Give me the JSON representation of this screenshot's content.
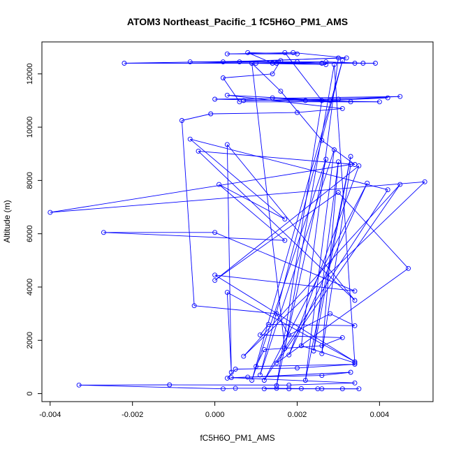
{
  "chart_data": {
    "type": "line",
    "title": "ATOM3 Northeast_Pacific_1 fC5H6O_PM1_AMS",
    "xlabel": "fC5H6O_PM1_AMS",
    "ylabel": "Altitude (m)",
    "xlim": [
      -0.0042,
      0.0053
    ],
    "ylim": [
      -300,
      13200
    ],
    "xticks": [
      -0.004,
      -0.002,
      0.0,
      0.002,
      0.004
    ],
    "xtick_labels": [
      "-0.004",
      "-0.002",
      "0.000",
      "0.002",
      "0.004"
    ],
    "yticks": [
      0,
      2000,
      4000,
      6000,
      8000,
      10000,
      12000
    ],
    "ytick_labels": [
      "0",
      "2000",
      "4000",
      "6000",
      "8000",
      "10000",
      "12000"
    ],
    "grid": false,
    "line_color": "#0000ff",
    "marker": "open-circle",
    "series": [
      {
        "points": [
          [
            0.0012,
            180
          ],
          [
            0.0018,
            180
          ],
          [
            0.0025,
            180
          ],
          [
            0.0031,
            180
          ],
          [
            0.0035,
            180
          ],
          [
            0.0026,
            180
          ],
          [
            0.0021,
            190
          ],
          [
            0.0015,
            200
          ],
          [
            0.0005,
            200
          ],
          [
            0.0002,
            180
          ],
          [
            -0.0033,
            320
          ],
          [
            -0.0011,
            330
          ],
          [
            0.0018,
            320
          ],
          [
            0.0034,
            400
          ],
          [
            0.0004,
            600
          ],
          [
            0.0008,
            620
          ],
          [
            0.0026,
            680
          ],
          [
            0.0033,
            800
          ],
          [
            0.0003,
            580
          ],
          [
            0.0005,
            920
          ],
          [
            0.002,
            960
          ],
          [
            0.0034,
            1100
          ],
          [
            0.001,
            1020
          ],
          [
            0.0012,
            1650
          ],
          [
            0.0026,
            1800
          ],
          [
            0.0031,
            2100
          ],
          [
            0.0011,
            2200
          ],
          [
            0.0013,
            2600
          ],
          [
            0.0034,
            2550
          ],
          [
            0.0028,
            3000
          ],
          [
            0.0018,
            2200
          ],
          [
            0.0015,
            3000
          ],
          [
            -0.0005,
            3300
          ],
          [
            -0.0008,
            10250
          ],
          [
            -0.0001,
            10500
          ],
          [
            0.002,
            10550
          ],
          [
            0.0031,
            10700
          ],
          [
            0.0003,
            11200
          ],
          [
            0.0028,
            11000
          ],
          [
            0.0042,
            11100
          ],
          [
            0.0007,
            11000
          ],
          [
            0.003,
            11050
          ],
          [
            0.0045,
            11150
          ],
          [
            0.0,
            11050
          ],
          [
            0.0033,
            10950
          ],
          [
            0.0014,
            11100
          ],
          [
            0.0022,
            11000
          ],
          [
            0.004,
            10950
          ],
          [
            0.0006,
            10950
          ],
          [
            0.0002,
            11850
          ],
          [
            0.0014,
            12000
          ],
          [
            0.0016,
            12500
          ],
          [
            -0.0022,
            12400
          ],
          [
            0.001,
            12400
          ],
          [
            0.0034,
            12400
          ],
          [
            0.0039,
            12400
          ],
          [
            0.0015,
            12400
          ],
          [
            0.0027,
            12350
          ],
          [
            0.0009,
            12400
          ],
          [
            -0.0006,
            12450
          ],
          [
            0.0027,
            12450
          ],
          [
            0.0036,
            12400
          ],
          [
            0.0002,
            12450
          ],
          [
            0.0032,
            12600
          ],
          [
            0.0019,
            12800
          ],
          [
            0.0003,
            12750
          ],
          [
            0.002,
            12750
          ],
          [
            0.0008,
            12800
          ],
          [
            0.0014,
            12400
          ],
          [
            0.002,
            12450
          ],
          [
            0.0026,
            12400
          ],
          [
            0.0006,
            12450
          ],
          [
            0.003,
            12600
          ],
          [
            0.0021,
            1800
          ],
          [
            0.0034,
            1150
          ],
          [
            0.0029,
            12350
          ],
          [
            0.0017,
            1700
          ],
          [
            0.0009,
            12400
          ],
          [
            0.0016,
            11350
          ],
          [
            0.0026,
            9500
          ],
          [
            0.0034,
            8600
          ],
          [
            -0.0004,
            9100
          ],
          [
            0.0034,
            3500
          ],
          [
            0.0003,
            9350
          ],
          [
            0.0004,
            800
          ],
          [
            0.0003,
            3800
          ],
          [
            0.0034,
            1200
          ],
          [
            0.0,
            4450
          ],
          [
            0.0034,
            3850
          ],
          [
            0.0,
            6050
          ],
          [
            -0.0027,
            6050
          ],
          [
            0.0017,
            5750
          ],
          [
            0.0001,
            7850
          ],
          [
            0.0017,
            6550
          ],
          [
            -0.0006,
            9550
          ],
          [
            0.0042,
            7650
          ],
          [
            0.0012,
            500
          ],
          [
            0.0037,
            7900
          ],
          [
            0.0018,
            1450
          ],
          [
            0.0035,
            8550
          ],
          [
            0.0,
            4250
          ],
          [
            0.003,
            7550
          ],
          [
            0.0047,
            4700
          ],
          [
            0.0015,
            1150
          ],
          [
            0.0045,
            7850
          ],
          [
            0.0007,
            1400
          ],
          [
            0.0051,
            7950
          ],
          [
            -0.004,
            6800
          ],
          [
            0.0033,
            8600
          ],
          [
            0.0026,
            1500
          ],
          [
            0.003,
            8700
          ],
          [
            0.0024,
            1600
          ],
          [
            0.0033,
            8900
          ],
          [
            0.0022,
            500
          ],
          [
            0.0029,
            9150
          ],
          [
            0.0011,
            700
          ],
          [
            0.0031,
            12500
          ],
          [
            0.0009,
            500
          ],
          [
            0.0027,
            8800
          ],
          [
            0.0015,
            300
          ],
          [
            0.0026,
            11000
          ],
          [
            0.0017,
            12800
          ]
        ]
      }
    ]
  }
}
